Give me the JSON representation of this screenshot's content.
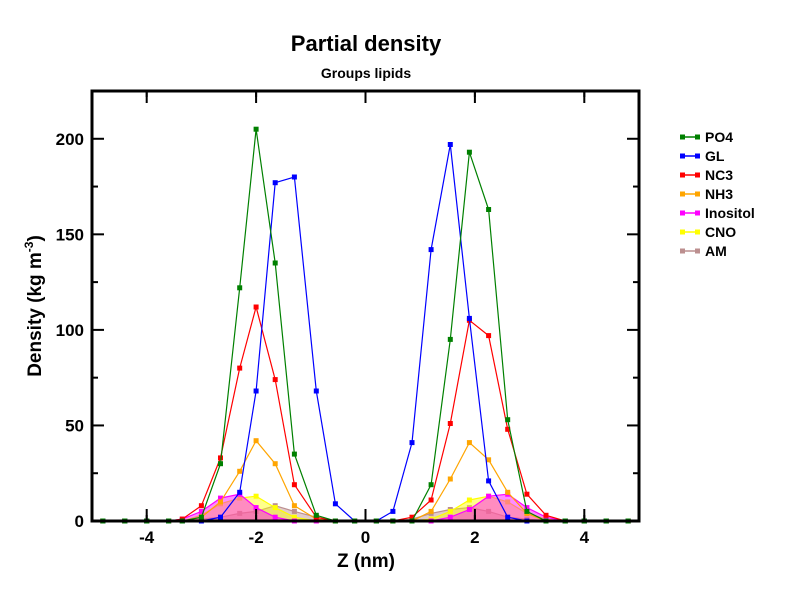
{
  "chart_data": {
    "type": "line",
    "title": "Partial density",
    "subtitle": "Groups lipids",
    "xlabel": "Z (nm)",
    "ylabel": "Density (kg m",
    "ylabel_sup": "-3",
    "ylabel_close": ")",
    "xlim": [
      -5,
      5
    ],
    "ylim": [
      0,
      225
    ],
    "xticks": [
      -4,
      -2,
      0,
      2,
      4
    ],
    "yticks": [
      0,
      50,
      100,
      150,
      200
    ],
    "grid": false,
    "legend": "outside-right",
    "x": [
      -4.8,
      -4.4,
      -4.0,
      -3.6,
      -3.35,
      -3.0,
      -2.65,
      -2.3,
      -2.0,
      -1.65,
      -1.3,
      -0.9,
      -0.55,
      -0.2,
      0.2,
      0.5,
      0.85,
      1.2,
      1.55,
      1.9,
      2.25,
      2.6,
      2.95,
      3.3,
      3.65,
      4.0,
      4.4,
      4.8
    ],
    "series": [
      {
        "name": "PO4",
        "color": "#008000",
        "values": [
          0,
          0,
          0,
          0,
          0,
          2,
          30,
          122,
          205,
          135,
          35,
          3,
          0,
          0,
          0,
          0,
          0,
          19,
          95,
          193,
          163,
          53,
          5,
          0,
          0,
          0,
          0,
          0
        ]
      },
      {
        "name": "GL",
        "color": "#0000ff",
        "values": [
          0,
          0,
          0,
          0,
          0,
          0,
          2,
          15,
          68,
          177,
          180,
          68,
          9,
          0,
          0,
          5,
          41,
          142,
          197,
          106,
          21,
          2,
          0,
          0,
          0,
          0,
          0,
          0
        ]
      },
      {
        "name": "NC3",
        "color": "#ff0000",
        "values": [
          0,
          0,
          0,
          0,
          1,
          8,
          33,
          80,
          112,
          74,
          19,
          2,
          0,
          0,
          0,
          0,
          2,
          11,
          51,
          105,
          97,
          48,
          14,
          3,
          0,
          0,
          0,
          0
        ]
      },
      {
        "name": "NH3",
        "color": "#ffa500",
        "values": [
          0,
          0,
          0,
          0,
          0,
          2,
          10,
          26,
          42,
          30,
          8,
          1,
          0,
          0,
          0,
          0,
          0,
          5,
          22,
          41,
          32,
          15,
          4,
          0,
          0,
          0,
          0,
          0
        ]
      },
      {
        "name": "Inositol",
        "color": "#ff00ff",
        "values": [
          0,
          0,
          0,
          0,
          1,
          5,
          12,
          14,
          7,
          2,
          0,
          0,
          0,
          0,
          0,
          0,
          0,
          0,
          2,
          6,
          13,
          14,
          7,
          2,
          0,
          0,
          0,
          0
        ]
      },
      {
        "name": "CNO",
        "color": "#ffff00",
        "values": [
          0,
          0,
          0,
          0,
          0,
          3,
          9,
          12,
          13,
          7,
          2,
          0,
          0,
          0,
          0,
          0,
          0,
          1,
          5,
          11,
          13,
          10,
          4,
          1,
          0,
          0,
          0,
          0
        ]
      },
      {
        "name": "AM",
        "color": "#bc8f8f",
        "values": [
          0,
          0,
          0,
          0,
          0,
          1,
          2,
          4,
          5,
          8,
          5,
          2,
          0,
          0,
          0,
          0,
          1,
          4,
          6,
          7,
          5,
          2,
          1,
          0,
          0,
          0,
          0,
          0
        ]
      }
    ]
  }
}
